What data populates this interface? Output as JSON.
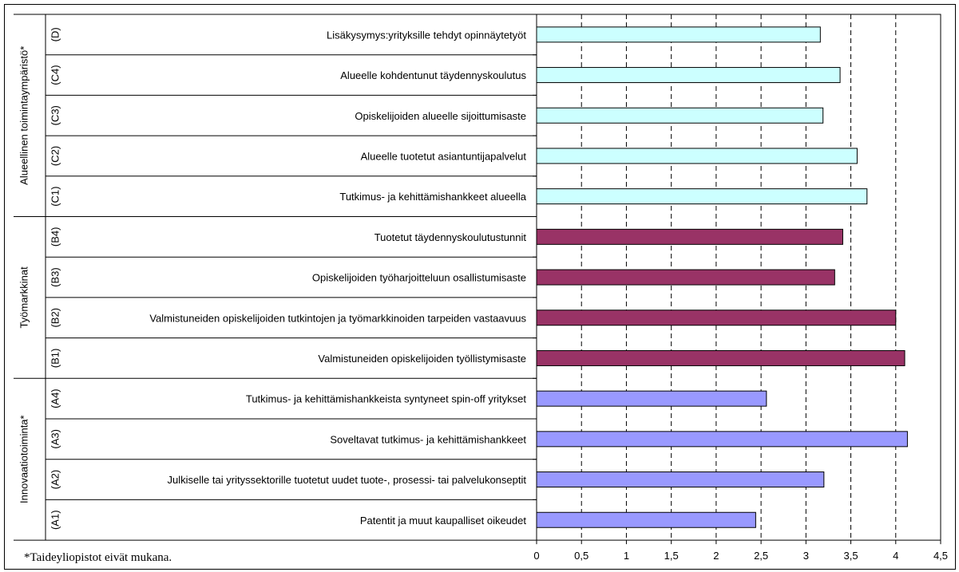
{
  "chart_data": {
    "type": "bar",
    "orientation": "horizontal",
    "xlim": [
      0,
      4.5
    ],
    "x_ticks": [
      "0",
      "0,5",
      "1",
      "1,5",
      "2",
      "2,5",
      "3",
      "3,5",
      "4",
      "4,5"
    ],
    "grid": true,
    "groups": [
      {
        "name": "Alueellinen toimintaympäristö*",
        "color": "#ccffff",
        "items": [
          {
            "code": "(D)",
            "label": "Lisäkysymys:yrityksille tehdyt opinnäytetyöt",
            "value": 3.16
          },
          {
            "code": "(C4)",
            "label": "Alueelle kohdentunut täydennyskoulutus",
            "value": 3.38
          },
          {
            "code": "(C3)",
            "label": "Opiskelijoiden alueelle sijoittumisaste",
            "value": 3.19
          },
          {
            "code": "(C2)",
            "label": "Alueelle tuotetut asiantuntijapalvelut",
            "value": 3.57
          },
          {
            "code": "(C1)",
            "label": "Tutkimus- ja kehittämishankkeet alueella",
            "value": 3.68
          }
        ]
      },
      {
        "name": "Työmarkkinat",
        "color": "#993366",
        "items": [
          {
            "code": "(B4)",
            "label": "Tuotetut täydennyskoulutustunnit",
            "value": 3.41
          },
          {
            "code": "(B3)",
            "label": "Opiskelijoiden työharjoitteluun osallistumisaste",
            "value": 3.32
          },
          {
            "code": "(B2)",
            "label": "Valmistuneiden opiskelijoiden tutkintojen ja työmarkkinoiden tarpeiden vastaavuus",
            "value": 4.0
          },
          {
            "code": "(B1)",
            "label": "Valmistuneiden opiskelijoiden työllistymisaste",
            "value": 4.1
          }
        ]
      },
      {
        "name": "Innovaatiotoiminta*",
        "color": "#9999ff",
        "items": [
          {
            "code": "(A4)",
            "label": "Tutkimus- ja kehittämishankkeista syntyneet spin-off yritykset",
            "value": 2.56
          },
          {
            "code": "(A3)",
            "label": "Soveltavat tutkimus- ja kehittämishankkeet",
            "value": 4.13
          },
          {
            "code": "(A2)",
            "label": "Julkiselle tai yrityssektorille tuotetut uudet tuote-, prosessi- tai palvelukonseptit",
            "value": 3.2
          },
          {
            "code": "(A1)",
            "label": "Patentit ja muut kaupalliset oikeudet",
            "value": 2.44
          }
        ]
      }
    ],
    "footnote": "*Taideyliopistot eivät mukana."
  }
}
